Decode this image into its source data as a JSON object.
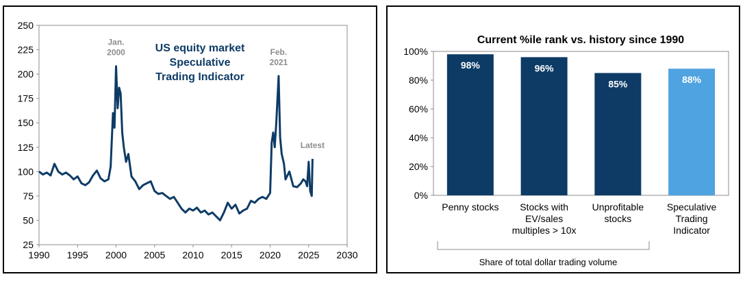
{
  "chart_data": [
    {
      "type": "line",
      "title": "US equity market Speculative Trading Indicator",
      "title_lines": [
        "US equity market",
        "Speculative",
        "Trading Indicator"
      ],
      "xlim": [
        1990,
        2030
      ],
      "ylim": [
        25,
        250
      ],
      "xticks": [
        1990,
        1995,
        2000,
        2005,
        2010,
        2015,
        2020,
        2025,
        2030
      ],
      "yticks": [
        25,
        50,
        75,
        100,
        125,
        150,
        175,
        200,
        225,
        250
      ],
      "grid": false,
      "legend": "none",
      "color": "#0d3b66",
      "annotations": [
        {
          "lines": [
            "Jan.",
            "2000"
          ],
          "x": 2000.0,
          "y": 208
        },
        {
          "lines": [
            "Feb.",
            "2021"
          ],
          "x": 2021.1,
          "y": 198
        },
        {
          "lines": [
            "Latest"
          ],
          "x": 2025.5,
          "y": 113
        }
      ],
      "series": [
        {
          "x": [
            1990.0,
            1990.5,
            1991.0,
            1991.5,
            1992.0,
            1992.5,
            1993.0,
            1993.5,
            1994.0,
            1994.5,
            1995.0,
            1995.5,
            1996.0,
            1996.5,
            1997.0,
            1997.5,
            1998.0,
            1998.5,
            1999.0,
            1999.3,
            1999.6,
            1999.8,
            2000.0,
            2000.2,
            2000.4,
            2000.6,
            2000.8,
            2001.0,
            2001.3,
            2001.6,
            2002.0,
            2002.5,
            2003.0,
            2003.5,
            2004.0,
            2004.5,
            2005.0,
            2005.5,
            2006.0,
            2006.5,
            2007.0,
            2007.5,
            2008.0,
            2008.5,
            2009.0,
            2009.5,
            2010.0,
            2010.5,
            2011.0,
            2011.5,
            2012.0,
            2012.5,
            2013.0,
            2013.5,
            2014.0,
            2014.5,
            2015.0,
            2015.5,
            2016.0,
            2016.5,
            2017.0,
            2017.5,
            2018.0,
            2018.5,
            2019.0,
            2019.5,
            2020.0,
            2020.2,
            2020.4,
            2020.6,
            2020.8,
            2021.1,
            2021.3,
            2021.5,
            2021.8,
            2022.0,
            2022.5,
            2023.0,
            2023.5,
            2024.0,
            2024.3,
            2024.6,
            2024.8,
            2025.0,
            2025.2,
            2025.4,
            2025.5
          ],
          "y": [
            100,
            97,
            99,
            96,
            108,
            100,
            97,
            99,
            96,
            92,
            95,
            88,
            86,
            89,
            96,
            101,
            93,
            90,
            92,
            105,
            160,
            145,
            208,
            165,
            186,
            180,
            140,
            125,
            110,
            118,
            95,
            90,
            82,
            86,
            88,
            90,
            80,
            77,
            78,
            75,
            72,
            74,
            68,
            62,
            58,
            62,
            60,
            63,
            58,
            60,
            56,
            58,
            54,
            50,
            58,
            68,
            62,
            66,
            57,
            60,
            62,
            70,
            68,
            72,
            74,
            72,
            78,
            130,
            140,
            125,
            150,
            198,
            135,
            118,
            108,
            92,
            100,
            85,
            84,
            88,
            92,
            90,
            85,
            110,
            80,
            75,
            113
          ]
        }
      ]
    },
    {
      "type": "bar",
      "title": "Current %ile rank vs. history since 1990",
      "categories": [
        "Penny stocks",
        "Stocks with EV/sales multiples > 10x",
        "Unprofitable stocks",
        "Speculative Trading Indicator"
      ],
      "category_lines": [
        [
          "Penny stocks"
        ],
        [
          "Stocks with",
          "EV/sales",
          "multiples > 10x"
        ],
        [
          "Unprofitable",
          "stocks"
        ],
        [
          "Speculative",
          "Trading",
          "Indicator"
        ]
      ],
      "values": [
        98,
        96,
        85,
        88
      ],
      "value_labels": [
        "98%",
        "96%",
        "85%",
        "88%"
      ],
      "colors": [
        "#0d3b66",
        "#0d3b66",
        "#0d3b66",
        "#4fa3e0"
      ],
      "ylim": [
        0,
        100
      ],
      "yticks": [
        "0%",
        "20%",
        "40%",
        "60%",
        "80%",
        "100%"
      ],
      "grid": false,
      "legend": "none",
      "group_label": "Share of total dollar trading volume"
    }
  ]
}
